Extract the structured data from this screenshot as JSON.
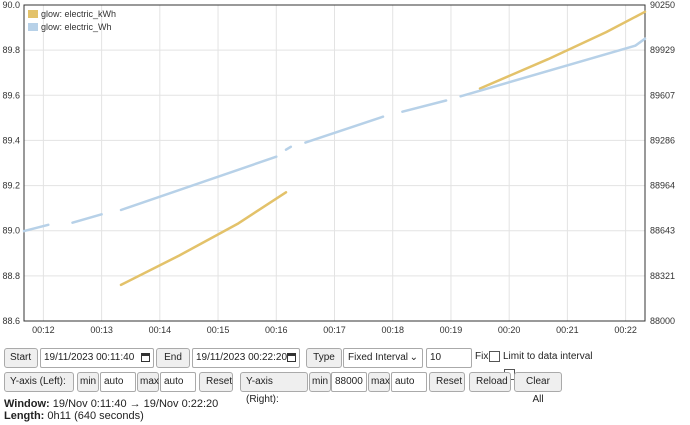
{
  "chart_data": {
    "type": "line",
    "x_ticks": [
      "00:12",
      "00:13",
      "00:14",
      "00:15",
      "00:16",
      "00:17",
      "00:18",
      "00:19",
      "00:20",
      "00:21",
      "00:22"
    ],
    "y_left": {
      "min": 88.6,
      "max": 90.0,
      "ticks": [
        "90.0",
        "89.8",
        "89.6",
        "89.4",
        "89.2",
        "89.0",
        "88.8",
        "88.6"
      ]
    },
    "y_right": {
      "min": 88000,
      "max": 90250,
      "ticks": [
        "90250",
        "89929",
        "89607",
        "89286",
        "88964",
        "88643",
        "88321",
        "88000"
      ]
    },
    "series": [
      {
        "name": "glow: electric_kWh",
        "axis": "left",
        "color": "#e3c26a",
        "segments": [
          [
            [
              "00:13:20",
              88.76
            ],
            [
              "00:14:20",
              88.89
            ],
            [
              "00:15:20",
              89.03
            ],
            [
              "00:16:10",
              89.17
            ]
          ],
          [
            [
              "00:19:30",
              89.63
            ],
            [
              "00:20:40",
              89.76
            ],
            [
              "00:21:40",
              89.88
            ],
            [
              "00:22:20",
              89.97
            ]
          ]
        ]
      },
      {
        "name": "glow: electric_Wh",
        "axis": "right",
        "color": "#b7d1e8",
        "segments": [
          [
            [
              "00:11:40",
              88640
            ],
            [
              "00:12:05",
              88685
            ]
          ],
          [
            [
              "00:12:30",
              88700
            ],
            [
              "00:13:00",
              88760
            ]
          ],
          [
            [
              "00:13:20",
              88790
            ],
            [
              "00:16:00",
              89170
            ]
          ],
          [
            [
              "00:16:10",
              89220
            ],
            [
              "00:16:15",
              89240
            ]
          ],
          [
            [
              "00:16:30",
              89270
            ],
            [
              "00:17:50",
              89455
            ]
          ],
          [
            [
              "00:18:10",
              89490
            ],
            [
              "00:18:55",
              89570
            ]
          ],
          [
            [
              "00:19:10",
              89600
            ],
            [
              "00:22:10",
              89960
            ],
            [
              "00:22:20",
              90010
            ]
          ]
        ]
      }
    ],
    "grid": true,
    "legend_position": "top-left"
  },
  "controls": {
    "start_label": "Start",
    "start_value": "19/11/2023 00:11:40",
    "end_label": "End",
    "end_value": "19/11/2023 00:22:20",
    "type_label": "Type",
    "type_value": "Fixed Interval",
    "interval_value": "10",
    "fix_label": "Fix",
    "limit_label": "Limit to data interval",
    "yleft_label": "Y-axis (Left):",
    "yleft_min_label": "min",
    "yleft_min_value": "auto",
    "yleft_max_label": "max",
    "yleft_max_value": "auto",
    "yleft_reset": "Reset",
    "yright_label": "Y-axis (Right):",
    "yright_min_label": "min",
    "yright_min_value": "88000",
    "yright_max_label": "max",
    "yright_max_value": "auto",
    "yright_reset": "Reset",
    "reload": "Reload",
    "clear_all": "Clear All"
  },
  "info": {
    "window_label": "Window:",
    "window_value": "19/Nov 0:11:40 → 19/Nov 0:22:20",
    "length_label": "Length:",
    "length_value": "0h11 (640 seconds)"
  }
}
